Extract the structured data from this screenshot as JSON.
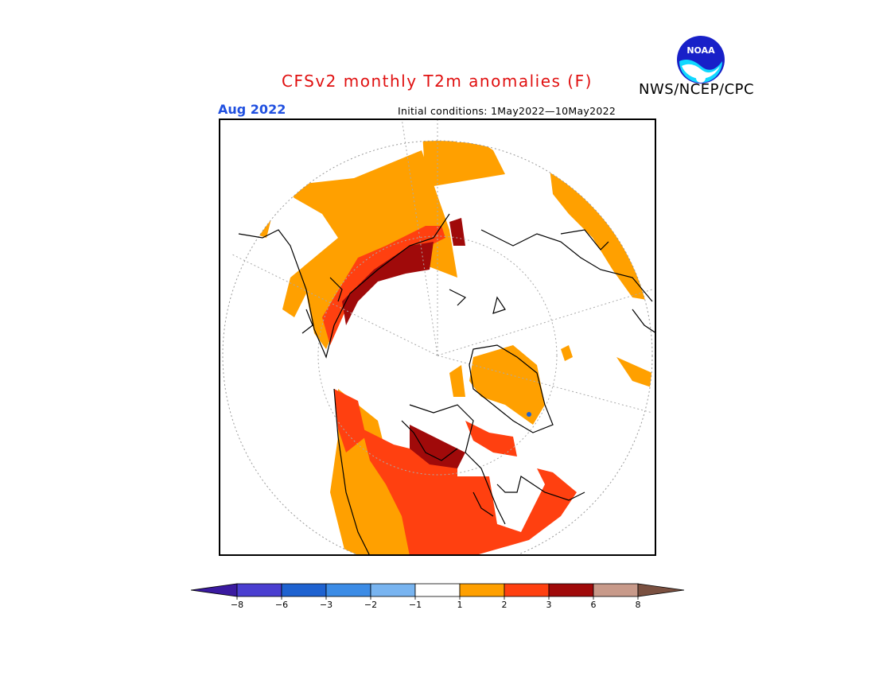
{
  "title": "CFSv2 monthly T2m anomalies (F)",
  "organization": "NWS/NCEP/CPC",
  "logo_text": "NOAA",
  "valid_month": "Aug 2022",
  "initial_conditions": "Initial conditions: 1May2022—10May2022",
  "colorbar": {
    "bins": [
      {
        "color": "#3a1aa0"
      },
      {
        "color": "#4a3ed0"
      },
      {
        "color": "#1e62d0"
      },
      {
        "color": "#3c8ce6"
      },
      {
        "color": "#78b4f0"
      },
      {
        "color": "#ffffff"
      },
      {
        "color": "#ffa000"
      },
      {
        "color": "#ff4010"
      },
      {
        "color": "#a00a0a"
      },
      {
        "color": "#c89a8a"
      },
      {
        "color": "#7a5040"
      }
    ],
    "tick_labels": [
      "−8",
      "−6",
      "−3",
      "−2",
      "−1",
      "1",
      "2",
      "3",
      "6",
      "8"
    ]
  },
  "map": {
    "projection": "north polar stereographic",
    "colors": {
      "orange": "#ffa000",
      "red": "#ff4010",
      "darkred": "#a00a0a",
      "blue": "#1e62d0"
    }
  }
}
